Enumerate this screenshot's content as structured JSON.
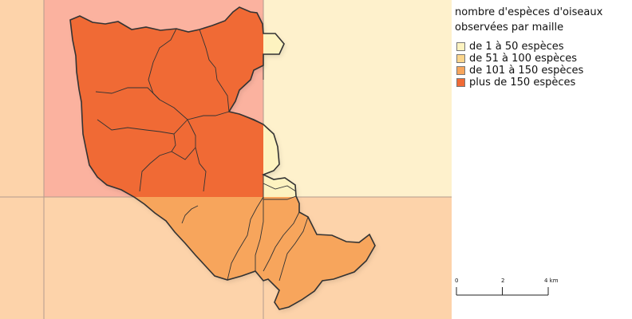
{
  "legend": {
    "title": "nombre d'espèces d'oiseaux\nobservées par maille",
    "items": [
      {
        "label": "de 1 à 50 espèces",
        "color": "#fdf3c0"
      },
      {
        "label": "de 51 à 100 espèces",
        "color": "#fbd58c"
      },
      {
        "label": "de 101 à 150 espèces",
        "color": "#f7a55c"
      },
      {
        "label": "plus de 150 espèces",
        "color": "#f06a35"
      }
    ]
  },
  "scale_bar": {
    "labels": [
      "0",
      "2",
      "4 km"
    ]
  },
  "grid_cells": [
    {
      "label": "",
      "class": "de 101 à 150 espèces",
      "color": "#fdd3aa"
    },
    {
      "label": "",
      "class": "plus de 150 espèces",
      "color": "#fbb29f"
    },
    {
      "label": "",
      "class": "de 1 à 50 espèces",
      "color": "#fef1cc"
    },
    {
      "label": "",
      "class": "de 101 à 150 espèces",
      "color": "#fdd3aa"
    },
    {
      "label": "",
      "class": "de 101 à 150 espèces",
      "color": "#fdd3aa"
    },
    {
      "label": "",
      "class": "de 101 à 150 espèces",
      "color": "#fdd3aa"
    }
  ],
  "territory_colors": {
    "north": "#f06a35",
    "south": "#f7a55c",
    "east_strip": "#fdf3c0",
    "outline": "#333333",
    "grid_line": "#b39b8e"
  }
}
